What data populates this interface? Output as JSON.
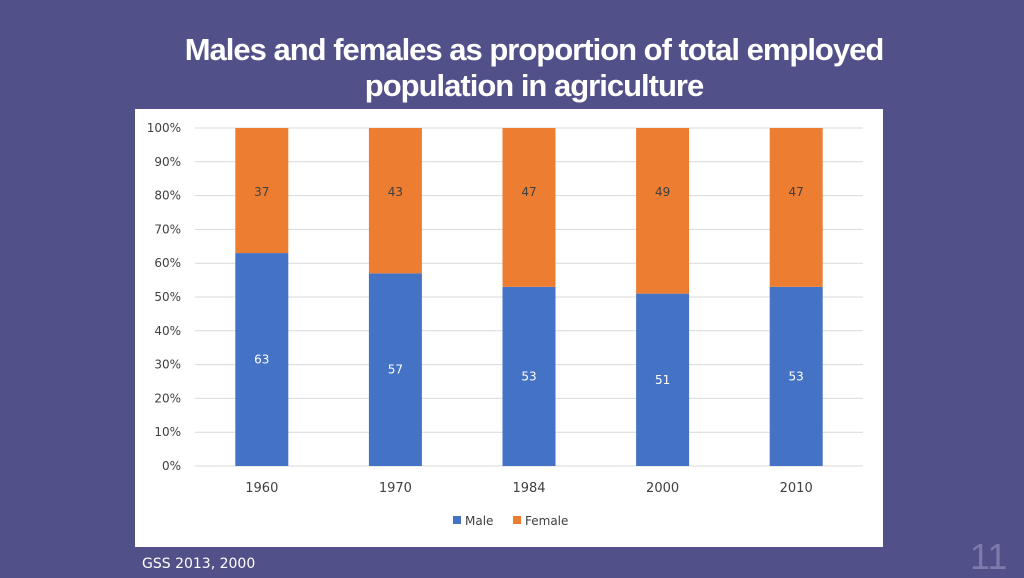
{
  "slide": {
    "title_line1": "Males and females as proportion of total employed",
    "title_line2": "population in agriculture",
    "source": "GSS 2013, 2000",
    "page_number": "11"
  },
  "chart_data": {
    "type": "bar",
    "stacked": true,
    "categories": [
      "1960",
      "1970",
      "1984",
      "2000",
      "2010"
    ],
    "series": [
      {
        "name": "Male",
        "values": [
          63,
          57,
          53,
          51,
          53
        ],
        "color": "#4472c4"
      },
      {
        "name": "Female",
        "values": [
          37,
          43,
          47,
          49,
          47
        ],
        "color": "#ed7d31"
      }
    ],
    "y_ticks": [
      "0%",
      "10%",
      "20%",
      "30%",
      "40%",
      "50%",
      "60%",
      "70%",
      "80%",
      "90%",
      "100%"
    ],
    "ylim": [
      0,
      100
    ],
    "grid": true,
    "legend_position": "bottom",
    "title": "",
    "xlabel": "",
    "ylabel": ""
  }
}
